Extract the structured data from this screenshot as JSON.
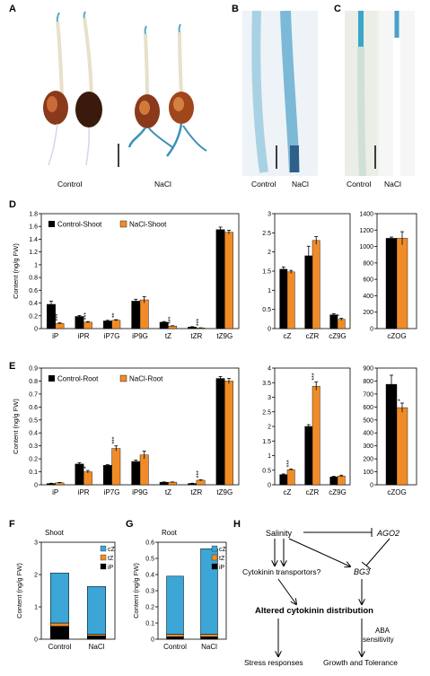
{
  "panels": {
    "A": {
      "letter": "A",
      "labels": [
        "Control",
        "NaCl"
      ]
    },
    "B": {
      "letter": "B",
      "labels": [
        "Control",
        "NaCl"
      ]
    },
    "C": {
      "letter": "C",
      "labels": [
        "Control",
        "NaCl"
      ]
    },
    "D": {
      "letter": "D"
    },
    "E": {
      "letter": "E"
    },
    "F": {
      "letter": "F"
    },
    "G": {
      "letter": "G"
    },
    "H": {
      "letter": "H"
    }
  },
  "colors": {
    "control": "#000000",
    "nacl": "#f08c28",
    "cZ": "#3ca6d6",
    "tZ": "#f08c28",
    "iP": "#000000",
    "error": "#000000"
  },
  "chart_data": [
    {
      "id": "D1",
      "type": "bar",
      "ylabel": "Content (ng/g FW)",
      "ylim": [
        0,
        1.8
      ],
      "yticks": [
        "0",
        "0.2",
        "0.4",
        "0.6",
        "0.8",
        "1",
        "1.2",
        "1.4",
        "1.6",
        "1.8"
      ],
      "categories": [
        "iP",
        "iPR",
        "iP7G",
        "iP9G",
        "tZ",
        "tZR",
        "tZ9G"
      ],
      "series": [
        {
          "name": "Control-Shoot",
          "values": [
            0.38,
            0.19,
            0.12,
            0.43,
            0.1,
            0.025,
            1.55
          ],
          "errors": [
            0.05,
            0.015,
            0.01,
            0.03,
            0.01,
            0.005,
            0.04
          ]
        },
        {
          "name": "NaCl-Shoot",
          "values": [
            0.08,
            0.1,
            0.13,
            0.45,
            0.04,
            0.01,
            1.51
          ],
          "errors": [
            0.01,
            0.01,
            0.01,
            0.05,
            0.005,
            0.003,
            0.03
          ]
        }
      ],
      "stars": [
        "***",
        "***",
        "**",
        "",
        "***",
        "***",
        ""
      ]
    },
    {
      "id": "D2",
      "type": "bar",
      "ylim": [
        0,
        3
      ],
      "yticks": [
        "0",
        "0.5",
        "1",
        "1.5",
        "2",
        "2.5",
        "3"
      ],
      "categories": [
        "cZ",
        "cZR",
        "cZ9G"
      ],
      "series": [
        {
          "name": "Control-Shoot",
          "values": [
            1.55,
            1.9,
            0.36
          ],
          "errors": [
            0.06,
            0.25,
            0.03
          ]
        },
        {
          "name": "NaCl-Shoot",
          "values": [
            1.48,
            2.3,
            0.24
          ],
          "errors": [
            0.04,
            0.1,
            0.03
          ]
        }
      ],
      "stars": [
        "",
        "",
        "*"
      ]
    },
    {
      "id": "D3",
      "type": "bar",
      "ylim": [
        0,
        1400
      ],
      "yticks": [
        "0",
        "200",
        "400",
        "600",
        "800",
        "1000",
        "1200",
        "1400"
      ],
      "categories": [
        "cZOG"
      ],
      "series": [
        {
          "name": "Control-Shoot",
          "values": [
            1100
          ],
          "errors": [
            15
          ]
        },
        {
          "name": "NaCl-Shoot",
          "values": [
            1100
          ],
          "errors": [
            80
          ]
        }
      ],
      "stars": [
        ""
      ]
    },
    {
      "id": "E1",
      "type": "bar",
      "ylabel": "Content (ng/g FW)",
      "ylim": [
        0,
        0.9
      ],
      "yticks": [
        "0",
        "0.1",
        "0.2",
        "0.3",
        "0.4",
        "0.5",
        "0.6",
        "0.7",
        "0.8",
        "0.9"
      ],
      "categories": [
        "iP",
        "iPR",
        "iP7G",
        "iP9G",
        "tZ",
        "tZR",
        "tZ9G"
      ],
      "series": [
        {
          "name": "Control-Root",
          "values": [
            0.01,
            0.16,
            0.15,
            0.18,
            0.02,
            0.01,
            0.82
          ],
          "errors": [
            0.002,
            0.01,
            0.005,
            0.01,
            0.002,
            0.002,
            0.015
          ]
        },
        {
          "name": "NaCl-Root",
          "values": [
            0.015,
            0.1,
            0.28,
            0.23,
            0.02,
            0.035,
            0.8
          ],
          "errors": [
            0.003,
            0.01,
            0.02,
            0.03,
            0.002,
            0.004,
            0.02
          ]
        }
      ],
      "stars": [
        "",
        "*",
        "***",
        "",
        "",
        "***",
        ""
      ]
    },
    {
      "id": "E2",
      "type": "bar",
      "ylim": [
        0,
        4
      ],
      "yticks": [
        "0",
        "0.5",
        "1",
        "1.5",
        "2",
        "2.5",
        "3",
        "3.5",
        "4"
      ],
      "categories": [
        "cZ",
        "cZR",
        "cZ9G"
      ],
      "series": [
        {
          "name": "Control-Root",
          "values": [
            0.35,
            2.0,
            0.27
          ],
          "errors": [
            0.02,
            0.06,
            0.02
          ]
        },
        {
          "name": "NaCl-Root",
          "values": [
            0.52,
            3.38,
            0.3
          ],
          "errors": [
            0.02,
            0.14,
            0.03
          ]
        }
      ],
      "stars": [
        "***",
        "***",
        ""
      ]
    },
    {
      "id": "E3",
      "type": "bar",
      "ylim": [
        0,
        900
      ],
      "yticks": [
        "0",
        "100",
        "200",
        "300",
        "400",
        "500",
        "600",
        "700",
        "800",
        "900"
      ],
      "categories": [
        "cZOG"
      ],
      "series": [
        {
          "name": "Control-Root",
          "values": [
            775
          ],
          "errors": [
            70
          ]
        },
        {
          "name": "NaCl-Root",
          "values": [
            595
          ],
          "errors": [
            35
          ]
        }
      ],
      "stars": [
        "*"
      ]
    },
    {
      "id": "F",
      "type": "bar",
      "subtitle": "Shoot",
      "ylabel": "Content (ng/g FW)",
      "ylim": [
        0,
        3
      ],
      "yticks": [
        "0",
        "1",
        "2",
        "3"
      ],
      "categories": [
        "Control",
        "NaCl"
      ],
      "legend": [
        "cZ",
        "tZ",
        "iP"
      ],
      "stack": [
        {
          "name": "iP",
          "values": [
            0.4,
            0.1
          ]
        },
        {
          "name": "tZ",
          "values": [
            0.1,
            0.05
          ]
        },
        {
          "name": "cZ",
          "values": [
            1.55,
            1.48
          ]
        }
      ]
    },
    {
      "id": "G",
      "type": "bar",
      "subtitle": "Root",
      "ylabel": "Content (ng/g FW)",
      "ylim": [
        0,
        0.6
      ],
      "yticks": [
        "0",
        "0.1",
        "0.2",
        "0.3",
        "0.4",
        "0.5",
        "0.6"
      ],
      "categories": [
        "Control",
        "NaCl"
      ],
      "legend": [
        "cZ",
        "tZ",
        "iP"
      ],
      "stack": [
        {
          "name": "iP",
          "values": [
            0.015,
            0.015
          ]
        },
        {
          "name": "tZ",
          "values": [
            0.015,
            0.015
          ]
        },
        {
          "name": "cZ",
          "values": [
            0.36,
            0.53
          ]
        }
      ]
    }
  ],
  "diagram": {
    "salinity": "Salinity",
    "ago2": "AGO2",
    "bg3": "BG3",
    "transporters": "Cytokinin transportors?",
    "altered": "Altered cytokinin distribution",
    "aba": "ABA",
    "sensitivity": "sensitivity",
    "stress": "Stress responses",
    "growth": "Growth and Tolerance"
  }
}
